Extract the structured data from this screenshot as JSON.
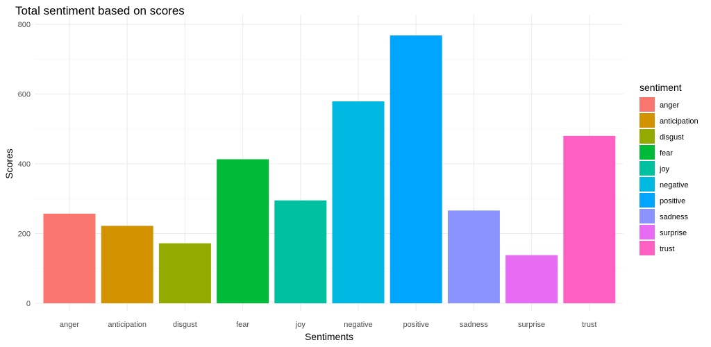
{
  "chart_data": {
    "type": "bar",
    "title": "Total sentiment based on scores",
    "xlabel": "Sentiments",
    "ylabel": "Scores",
    "categories": [
      "anger",
      "anticipation",
      "disgust",
      "fear",
      "joy",
      "negative",
      "positive",
      "sadness",
      "surprise",
      "trust"
    ],
    "values": [
      257,
      222,
      172,
      413,
      295,
      579,
      768,
      266,
      138,
      480
    ],
    "colors": [
      "#F8766D",
      "#D39200",
      "#93AA00",
      "#00BA38",
      "#00C19F",
      "#00B9E3",
      "#00A5FF",
      "#8B93FF",
      "#E76BF3",
      "#FF61C3"
    ],
    "ylim": [
      0,
      800
    ],
    "yticks": [
      0,
      200,
      400,
      600,
      800
    ],
    "grid": true,
    "legend": {
      "title": "sentiment",
      "position": "right",
      "entries": [
        "anger",
        "anticipation",
        "disgust",
        "fear",
        "joy",
        "negative",
        "positive",
        "sadness",
        "surprise",
        "trust"
      ]
    }
  }
}
